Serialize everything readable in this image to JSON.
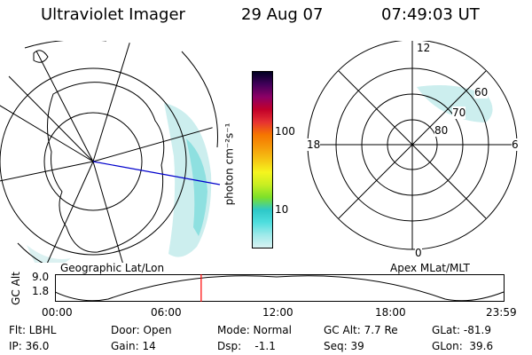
{
  "header": {
    "title": "Ultraviolet Imager",
    "date": "29 Aug 07",
    "time": "07:49:03 UT"
  },
  "left_panel": {
    "caption": "Geographic Lat/Lon"
  },
  "right_panel": {
    "caption": "Apex MLat/MLT",
    "mlt_labels": {
      "top": "12",
      "right": "6",
      "bottom": "0",
      "left": "18"
    },
    "lat_labels": [
      "60",
      "70",
      "80"
    ]
  },
  "colorbar": {
    "unit_label": "photon cm⁻²s⁻¹",
    "ticks": [
      "100",
      "10"
    ],
    "colors": [
      "#d8f2f2",
      "#9feaea",
      "#4fdede",
      "#2ec8c8",
      "#7ce02a",
      "#c8ee22",
      "#f5f51e",
      "#f5c514",
      "#f59a0a",
      "#f57500",
      "#e63232",
      "#c2002a",
      "#8c0066",
      "#42005a",
      "#000022"
    ]
  },
  "timeline": {
    "axis_label": "GC Alt",
    "y_ticks": [
      "9.0",
      "1.8"
    ],
    "x_ticks": [
      "00:00",
      "06:00",
      "12:00",
      "18:00",
      "23:59"
    ],
    "current_time_hours": 7.82
  },
  "footer": {
    "flt": "Flt: LBHL",
    "door": "Door: Open",
    "mode": "Mode: Normal",
    "gcalt": "GC Alt: 7.7 Re",
    "glat": "GLat: -81.9",
    "ip": "IP: 36.0",
    "gain": "Gain: 14",
    "dsp": "Dsp:    -1.1",
    "seq": "Seq: 39",
    "glon": "GLon:  39.6"
  },
  "colors": {
    "aurora": "#bfeaea",
    "track_line": "#0000cc",
    "time_marker": "#ff0000"
  }
}
